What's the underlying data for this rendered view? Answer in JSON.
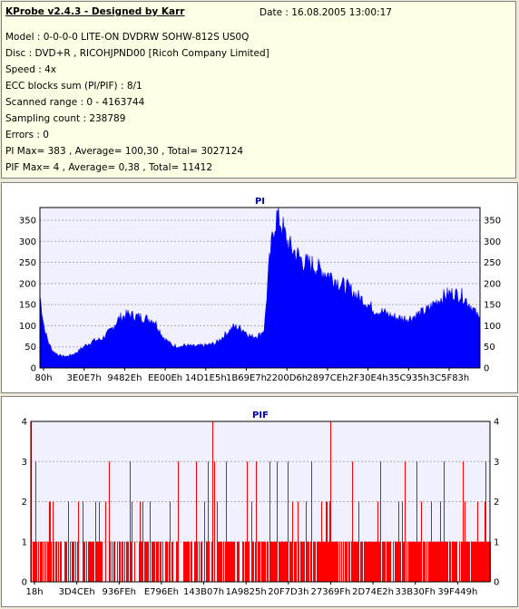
{
  "info": {
    "title": "KProbe v2.4.3 - Designed by Karr",
    "date": "Date : 16.08.2005 13:00:17",
    "lines": [
      "Model : 0-0-0-0 LITE-ON DVDRW SOHW-812S  US0Q",
      "Disc : DVD+R , RICOHJPND00 [Ricoh Company Limited]",
      "Speed : 4x",
      "ECC blocks sum (PI/PIF) : 8/1",
      "Scanned range : 0 - 4163744",
      "Sampling count : 238789",
      "Errors : 0",
      "PI Max= 383 , Average= 100,30 , Total= 3027124",
      "PIF Max= 4 , Average= 0,38 , Total= 11412"
    ]
  },
  "chart_data": [
    {
      "type": "area",
      "title": "PI",
      "color": "#0000ff",
      "ylim": [
        0,
        380
      ],
      "yticks": [
        0,
        50,
        100,
        150,
        200,
        250,
        300,
        350
      ],
      "xticks": [
        "80h",
        "3E0E7h",
        "9482Eh",
        "EE00Eh",
        "14D1E5h",
        "1B69E7h",
        "2200D6h",
        "2897CEh",
        "2F30E4h",
        "35C935h",
        "3C5F83h"
      ],
      "x": [
        0,
        0.01,
        0.02,
        0.03,
        0.045,
        0.06,
        0.08,
        0.1,
        0.12,
        0.14,
        0.16,
        0.18,
        0.2,
        0.22,
        0.24,
        0.26,
        0.28,
        0.3,
        0.32,
        0.33,
        0.35,
        0.38,
        0.4,
        0.42,
        0.44,
        0.46,
        0.48,
        0.5,
        0.51,
        0.52,
        0.53,
        0.535,
        0.54,
        0.55,
        0.56,
        0.57,
        0.58,
        0.6,
        0.62,
        0.64,
        0.66,
        0.68,
        0.7,
        0.72,
        0.74,
        0.76,
        0.78,
        0.8,
        0.82,
        0.84,
        0.86,
        0.88,
        0.9,
        0.92,
        0.93,
        0.94,
        0.96,
        0.98,
        1
      ],
      "values": [
        175,
        95,
        60,
        40,
        30,
        28,
        35,
        52,
        65,
        70,
        90,
        120,
        130,
        125,
        120,
        115,
        75,
        55,
        52,
        55,
        52,
        55,
        60,
        80,
        100,
        95,
        75,
        80,
        95,
        240,
        330,
        355,
        370,
        345,
        310,
        290,
        280,
        255,
        250,
        235,
        225,
        205,
        195,
        175,
        160,
        140,
        135,
        125,
        120,
        120,
        130,
        140,
        160,
        175,
        180,
        180,
        175,
        150,
        115
      ]
    },
    {
      "type": "bar",
      "title": "PIF",
      "color": "#ff0000",
      "ylim": [
        0,
        4
      ],
      "yticks": [
        0,
        1,
        2,
        3,
        4
      ],
      "xticks": [
        "18h",
        "3D4CEh",
        "936FEh",
        "E796Eh",
        "143B07h",
        "1A9825h",
        "20F7D3h",
        "27369Fh",
        "2D74E2h",
        "33B30Fh",
        "39F449h"
      ],
      "spikes4": [
        0.0,
        0.395,
        0.652
      ],
      "spikes3": [
        0.0,
        0.01,
        0.17,
        0.215,
        0.32,
        0.36,
        0.385,
        0.4,
        0.425,
        0.47,
        0.49,
        0.52,
        0.535,
        0.56,
        0.61,
        0.7,
        0.76,
        0.815,
        0.84,
        0.9,
        0.94,
        0.99
      ]
    }
  ]
}
